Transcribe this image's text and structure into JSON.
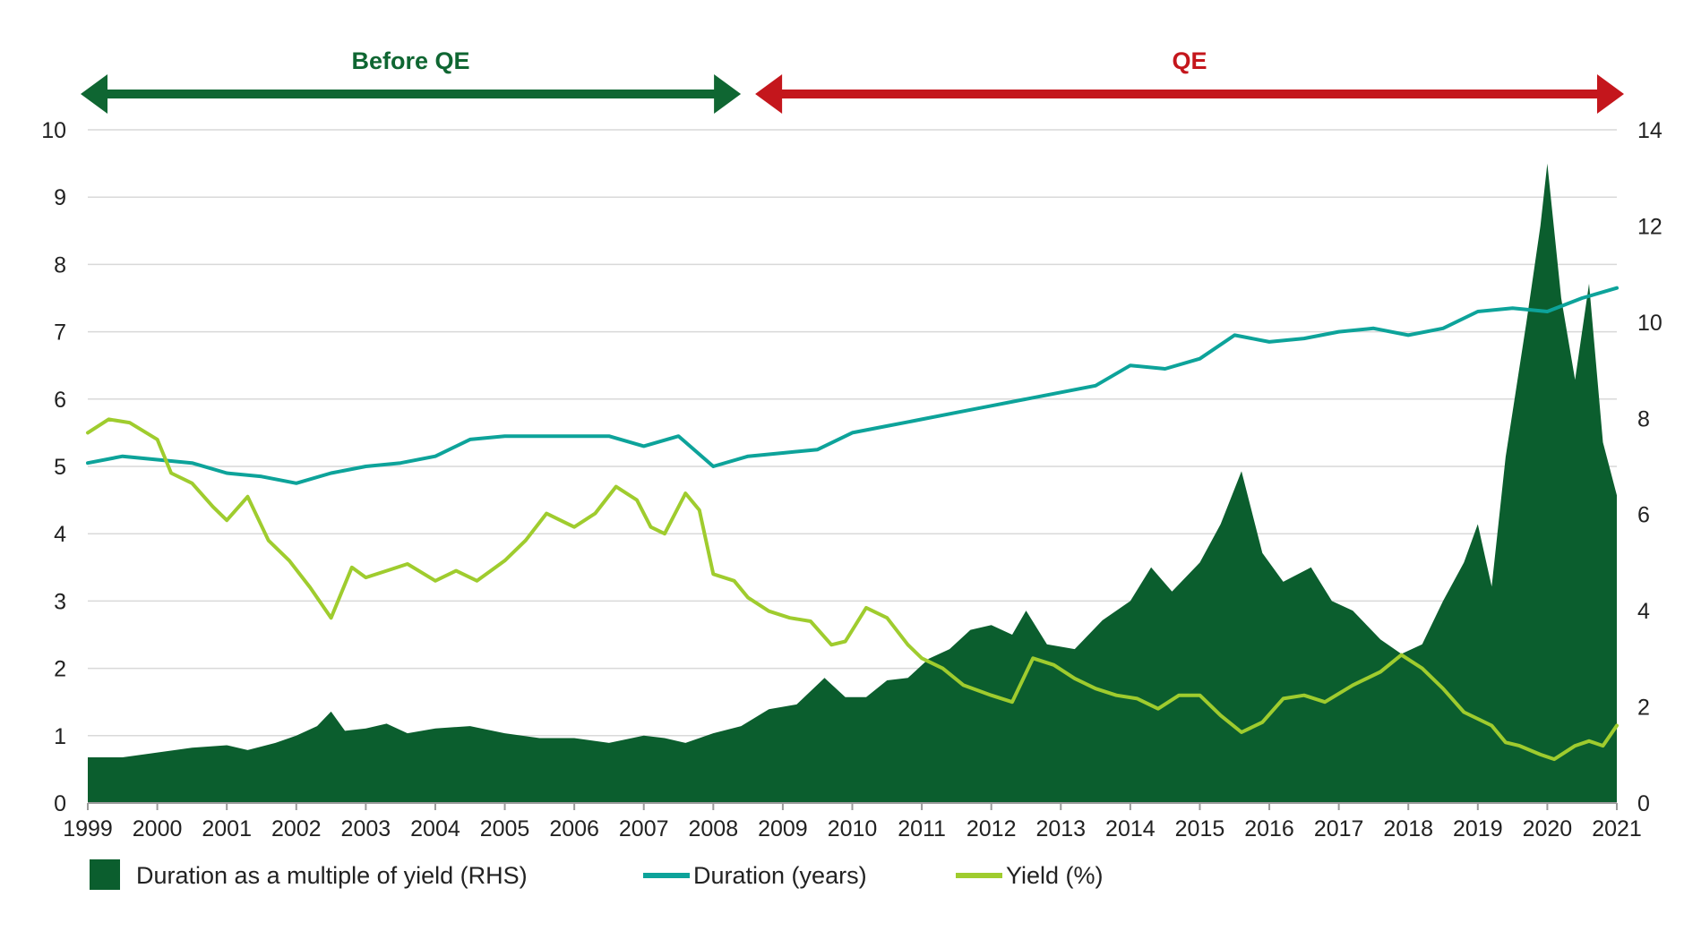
{
  "chart_data": {
    "type": "line",
    "title": "",
    "xlabel": "",
    "ylabel_left": "",
    "ylabel_right": "",
    "ylim_left": [
      0,
      10
    ],
    "ylim_right": [
      0,
      14
    ],
    "xlim": [
      1999,
      2021
    ],
    "grid": "horizontal",
    "legend_position": "bottom",
    "x_ticks": [
      "1999",
      "2000",
      "2001",
      "2002",
      "2003",
      "2004",
      "2005",
      "2006",
      "2007",
      "2008",
      "2009",
      "2010",
      "2011",
      "2012",
      "2013",
      "2014",
      "2015",
      "2016",
      "2017",
      "2018",
      "2019",
      "2020",
      "2021"
    ],
    "y_ticks_left": [
      "0",
      "1",
      "2",
      "3",
      "4",
      "5",
      "6",
      "7",
      "8",
      "9",
      "10"
    ],
    "y_ticks_right": [
      "0",
      "2",
      "4",
      "6",
      "8",
      "10",
      "12",
      "14"
    ],
    "periods": [
      {
        "label": "Before QE",
        "start": 1999,
        "end": 2008.5,
        "color": "#0f6632"
      },
      {
        "label": "QE",
        "start": 2008.5,
        "end": 2021,
        "color": "#c4161c"
      }
    ],
    "series": [
      {
        "name": "Duration as a multiple of yield (RHS)",
        "type": "area",
        "axis": "right",
        "color": "#0b5e2e",
        "x": [
          1999,
          1999.5,
          2000,
          2000.5,
          2001,
          2001.3,
          2001.7,
          2002,
          2002.3,
          2002.5,
          2002.7,
          2003,
          2003.3,
          2003.6,
          2004,
          2004.5,
          2005,
          2005.5,
          2006,
          2006.5,
          2007,
          2007.3,
          2007.6,
          2008,
          2008.4,
          2008.8,
          2009.2,
          2009.6,
          2009.9,
          2010.2,
          2010.5,
          2010.8,
          2011.1,
          2011.4,
          2011.7,
          2012,
          2012.3,
          2012.5,
          2012.8,
          2013.2,
          2013.6,
          2014,
          2014.3,
          2014.6,
          2015,
          2015.3,
          2015.6,
          2015.9,
          2016.2,
          2016.6,
          2016.9,
          2017.2,
          2017.6,
          2017.9,
          2018.2,
          2018.5,
          2018.8,
          2019,
          2019.2,
          2019.4,
          2019.7,
          2019.9,
          2020,
          2020.2,
          2020.4,
          2020.6,
          2020.8,
          2021
        ],
        "values": [
          0.95,
          0.95,
          1.05,
          1.15,
          1.2,
          1.1,
          1.25,
          1.4,
          1.6,
          1.9,
          1.5,
          1.55,
          1.65,
          1.45,
          1.55,
          1.6,
          1.45,
          1.35,
          1.35,
          1.25,
          1.4,
          1.35,
          1.25,
          1.45,
          1.6,
          1.95,
          2.05,
          2.6,
          2.2,
          2.2,
          2.55,
          2.6,
          3.0,
          3.2,
          3.6,
          3.7,
          3.5,
          4.0,
          3.3,
          3.2,
          3.8,
          4.2,
          4.9,
          4.4,
          5.0,
          5.8,
          6.9,
          5.2,
          4.6,
          4.9,
          4.2,
          4.0,
          3.4,
          3.1,
          3.3,
          4.2,
          5.0,
          5.8,
          4.5,
          7.2,
          10.0,
          12.0,
          13.3,
          10.5,
          8.8,
          10.8,
          7.5,
          6.4
        ]
      },
      {
        "name": "Duration (years)",
        "type": "line",
        "axis": "left",
        "color": "#0da39a",
        "x": [
          1999,
          1999.5,
          2000,
          2000.5,
          2001,
          2001.5,
          2002,
          2002.5,
          2003,
          2003.5,
          2004,
          2004.5,
          2005,
          2005.5,
          2006,
          2006.5,
          2007,
          2007.5,
          2008,
          2008.5,
          2009,
          2009.5,
          2010,
          2010.5,
          2011,
          2011.5,
          2012,
          2012.5,
          2013,
          2013.5,
          2014,
          2014.5,
          2015,
          2015.5,
          2016,
          2016.5,
          2017,
          2017.5,
          2018,
          2018.5,
          2019,
          2019.5,
          2020,
          2020.5,
          2021
        ],
        "values": [
          5.05,
          5.15,
          5.1,
          5.05,
          4.9,
          4.85,
          4.75,
          4.9,
          5.0,
          5.05,
          5.15,
          5.4,
          5.45,
          5.45,
          5.45,
          5.45,
          5.3,
          5.45,
          5.0,
          5.15,
          5.2,
          5.25,
          5.5,
          5.6,
          5.7,
          5.8,
          5.9,
          6.0,
          6.1,
          6.2,
          6.5,
          6.45,
          6.6,
          6.95,
          6.85,
          6.9,
          7.0,
          7.05,
          6.95,
          7.05,
          7.3,
          7.35,
          7.3,
          7.5,
          7.65
        ]
      },
      {
        "name": "Yield (%)",
        "type": "line",
        "axis": "left",
        "color": "#9fcc2e",
        "x": [
          1999,
          1999.3,
          1999.6,
          2000,
          2000.2,
          2000.5,
          2000.8,
          2001,
          2001.3,
          2001.6,
          2001.9,
          2002.2,
          2002.5,
          2002.8,
          2003,
          2003.3,
          2003.6,
          2004,
          2004.3,
          2004.6,
          2005,
          2005.3,
          2005.6,
          2006,
          2006.3,
          2006.6,
          2006.9,
          2007.1,
          2007.3,
          2007.6,
          2007.8,
          2008,
          2008.3,
          2008.5,
          2008.8,
          2009.1,
          2009.4,
          2009.7,
          2009.9,
          2010.2,
          2010.5,
          2010.8,
          2011,
          2011.3,
          2011.6,
          2012,
          2012.3,
          2012.6,
          2012.9,
          2013.2,
          2013.5,
          2013.8,
          2014.1,
          2014.4,
          2014.7,
          2015,
          2015.3,
          2015.6,
          2015.9,
          2016.2,
          2016.5,
          2016.8,
          2017.2,
          2017.6,
          2017.9,
          2018.2,
          2018.5,
          2018.8,
          2019,
          2019.2,
          2019.4,
          2019.6,
          2019.9,
          2020.1,
          2020.4,
          2020.6,
          2020.8,
          2021
        ],
        "values": [
          5.5,
          5.7,
          5.65,
          5.4,
          4.9,
          4.75,
          4.4,
          4.2,
          4.55,
          3.9,
          3.6,
          3.2,
          2.75,
          3.5,
          3.35,
          3.45,
          3.55,
          3.3,
          3.45,
          3.3,
          3.6,
          3.9,
          4.3,
          4.1,
          4.3,
          4.7,
          4.5,
          4.1,
          4.0,
          4.6,
          4.35,
          3.4,
          3.3,
          3.05,
          2.85,
          2.75,
          2.7,
          2.35,
          2.4,
          2.9,
          2.75,
          2.35,
          2.15,
          2.0,
          1.75,
          1.6,
          1.5,
          2.15,
          2.05,
          1.85,
          1.7,
          1.6,
          1.55,
          1.4,
          1.6,
          1.6,
          1.3,
          1.05,
          1.2,
          1.55,
          1.6,
          1.5,
          1.75,
          1.95,
          2.2,
          2.0,
          1.7,
          1.35,
          1.25,
          1.15,
          0.9,
          0.85,
          0.72,
          0.65,
          0.85,
          0.92,
          0.85,
          1.15
        ]
      }
    ]
  }
}
